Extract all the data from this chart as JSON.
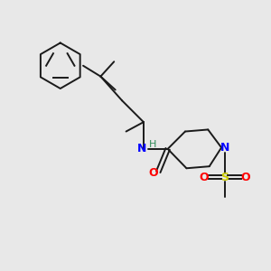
{
  "bg_color": "#e8e8e8",
  "bond_color": "#1a1a1a",
  "N_color": "#0000ff",
  "NH_color": "#2e8b57",
  "O_color": "#ff0000",
  "S_color": "#cccc00",
  "figsize": [
    3.0,
    3.0
  ],
  "dpi": 100,
  "lw": 1.4,
  "font_size": 9,
  "xlim": [
    0,
    10
  ],
  "ylim": [
    0,
    10
  ]
}
